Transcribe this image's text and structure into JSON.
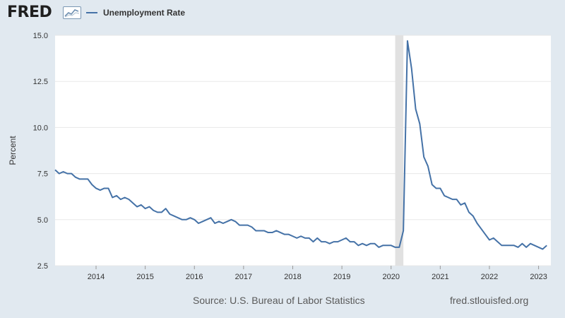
{
  "header": {
    "logo_text": "FRED",
    "legend_label": "Unemployment Rate"
  },
  "footer": {
    "source": "Source: U.S. Bureau of Labor Statistics",
    "site": "fred.stlouisfed.org"
  },
  "colors": {
    "background": "#e1e9f0",
    "plot_bg": "#ffffff",
    "series": "#4572a7",
    "recession": "#e1e1e1",
    "grid": "#e8e8e8"
  },
  "chart_data": {
    "type": "line",
    "title": "",
    "xlabel": "",
    "ylabel": "Percent",
    "ylim": [
      2.5,
      15.0
    ],
    "yticks": [
      "2.5",
      "5.0",
      "7.5",
      "10.0",
      "12.5",
      "15.0"
    ],
    "xlim": [
      "2013-03",
      "2023-04"
    ],
    "xticks": [
      "2014",
      "2015",
      "2016",
      "2017",
      "2018",
      "2019",
      "2020",
      "2021",
      "2022",
      "2023"
    ],
    "grid": "horizontal",
    "legend_position": "top-left",
    "recession_shading": [
      {
        "start": "2020-02",
        "end": "2020-04"
      }
    ],
    "series": [
      {
        "name": "Unemployment Rate",
        "x_start": "2013-03",
        "x_step": "month",
        "values": [
          7.7,
          7.5,
          7.6,
          7.5,
          7.5,
          7.3,
          7.2,
          7.2,
          7.2,
          6.9,
          6.7,
          6.6,
          6.7,
          6.7,
          6.2,
          6.3,
          6.1,
          6.2,
          6.1,
          5.9,
          5.7,
          5.8,
          5.6,
          5.7,
          5.5,
          5.4,
          5.4,
          5.6,
          5.3,
          5.2,
          5.1,
          5.0,
          5.0,
          5.1,
          5.0,
          4.8,
          4.9,
          5.0,
          5.1,
          4.8,
          4.9,
          4.8,
          4.9,
          5.0,
          4.9,
          4.7,
          4.7,
          4.7,
          4.6,
          4.4,
          4.4,
          4.4,
          4.3,
          4.3,
          4.4,
          4.3,
          4.2,
          4.2,
          4.1,
          4.0,
          4.1,
          4.0,
          4.0,
          3.8,
          4.0,
          3.8,
          3.8,
          3.7,
          3.8,
          3.8,
          3.9,
          4.0,
          3.8,
          3.8,
          3.6,
          3.7,
          3.6,
          3.7,
          3.7,
          3.5,
          3.6,
          3.6,
          3.6,
          3.5,
          3.5,
          4.4,
          14.7,
          13.2,
          11.0,
          10.2,
          8.4,
          7.9,
          6.9,
          6.7,
          6.7,
          6.3,
          6.2,
          6.1,
          6.1,
          5.8,
          5.9,
          5.4,
          5.2,
          4.8,
          4.5,
          4.2,
          3.9,
          4.0,
          3.8,
          3.6,
          3.6,
          3.6,
          3.6,
          3.5,
          3.7,
          3.5,
          3.7,
          3.6,
          3.5,
          3.4,
          3.6
        ]
      }
    ]
  }
}
